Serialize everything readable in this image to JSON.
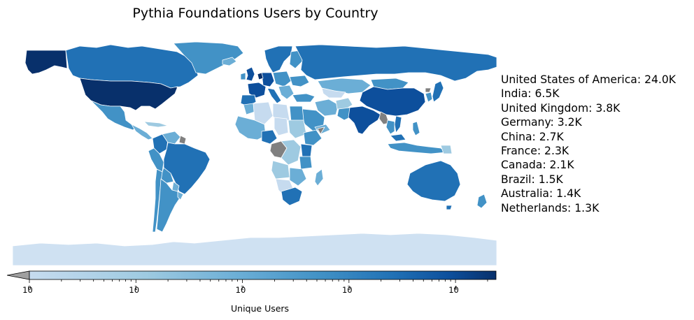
{
  "title": "Pythia Foundations Users by Country",
  "colorbar": {
    "label": "Unique Users",
    "scale": "log",
    "range": [
      1,
      24000
    ],
    "extend": "min",
    "ticks": [
      {
        "base": "10",
        "exp": "0",
        "value": 1
      },
      {
        "base": "10",
        "exp": "1",
        "value": 10
      },
      {
        "base": "10",
        "exp": "2",
        "value": 100
      },
      {
        "base": "10",
        "exp": "3",
        "value": 1000
      },
      {
        "base": "10",
        "exp": "4",
        "value": 10000
      }
    ],
    "colormap": "Blues",
    "missing_color": "#808080"
  },
  "top_countries": [
    "United States of America: 24.0K",
    "India: 6.5K",
    "United Kingdom: 3.8K",
    "Germany: 3.2K",
    "China: 2.7K",
    "France: 2.3K",
    "Canada: 2.1K",
    "Brazil: 1.5K",
    "Australia: 1.4K",
    "Netherlands: 1.3K"
  ],
  "colors": {
    "darkest": "#08306b",
    "dark": "#0d4f9c",
    "mid_dark": "#2171b5",
    "mid": "#4292c6",
    "light": "#6baed6",
    "lighter": "#9ecae1",
    "lightest": "#c6dbef",
    "palest": "#cfe1f2",
    "missing": "#808080"
  }
}
